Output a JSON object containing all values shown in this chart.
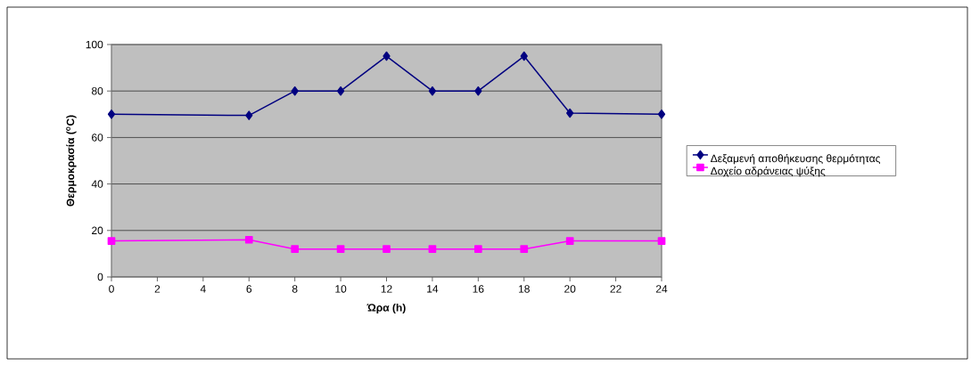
{
  "chart_data": {
    "type": "line",
    "xlabel": "Ώρα (h)",
    "ylabel": "Θερμοκρασία ($^{o}$C)",
    "x": [
      0,
      6,
      8,
      10,
      12,
      14,
      16,
      18,
      20,
      24
    ],
    "series": [
      {
        "name": "Δεξαμενή αποθήκευσης θερμότητας",
        "color": "#000080",
        "marker": "diamond",
        "values": [
          70,
          69.5,
          80,
          80,
          95,
          80,
          80,
          95,
          70.5,
          70
        ]
      },
      {
        "name": "Δοχείο αδράνειας ψύξης",
        "color": "#ff00ff",
        "marker": "square",
        "values": [
          15.5,
          16,
          12,
          12,
          12,
          12,
          12,
          12,
          15.5,
          15.5
        ]
      }
    ],
    "xlim": [
      0,
      24
    ],
    "xticks": [
      0,
      2,
      4,
      6,
      8,
      10,
      12,
      14,
      16,
      18,
      20,
      22,
      24
    ],
    "ylim": [
      0,
      100
    ],
    "yticks": [
      0,
      20,
      40,
      60,
      80,
      100
    ],
    "grid": "y",
    "legend": "right",
    "line_style": "solid"
  }
}
